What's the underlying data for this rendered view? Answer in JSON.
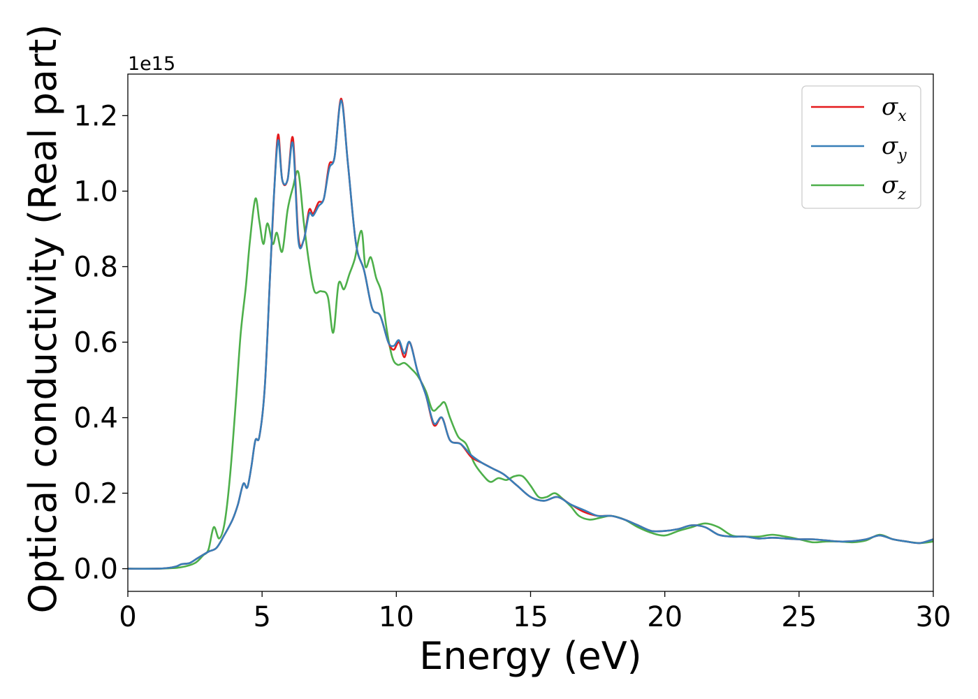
{
  "chart_data": {
    "type": "line",
    "xlabel": "Energy (eV)",
    "ylabel": "Optical conductivity (Real part)",
    "y_offset_label": "1e15",
    "xlim": [
      0,
      30
    ],
    "ylim": [
      -0.06,
      1.31
    ],
    "xticks": [
      0,
      5,
      10,
      15,
      20,
      25,
      30
    ],
    "xtick_labels": [
      "0",
      "5",
      "10",
      "15",
      "20",
      "25",
      "30"
    ],
    "yticks": [
      0.0,
      0.2,
      0.4,
      0.6,
      0.8,
      1.0,
      1.2
    ],
    "ytick_labels": [
      "0.0",
      "0.2",
      "0.4",
      "0.6",
      "0.8",
      "1.0",
      "1.2"
    ],
    "grid": false,
    "legend_position": "top-right",
    "series": [
      {
        "name": "σx",
        "symbol": "σ",
        "subscript": "x",
        "color": "#e41a1c",
        "x": [
          0,
          1,
          1.5,
          1.8,
          2.0,
          2.3,
          2.6,
          3.0,
          3.3,
          3.6,
          3.9,
          4.1,
          4.3,
          4.45,
          4.6,
          4.75,
          4.9,
          5.1,
          5.3,
          5.45,
          5.6,
          5.75,
          5.95,
          6.15,
          6.35,
          6.55,
          6.75,
          6.9,
          7.1,
          7.3,
          7.5,
          7.7,
          7.95,
          8.2,
          8.5,
          8.8,
          9.1,
          9.4,
          9.7,
          9.9,
          10.1,
          10.3,
          10.5,
          10.8,
          11.1,
          11.4,
          11.7,
          12.0,
          12.4,
          12.8,
          13.2,
          13.6,
          14.0,
          14.5,
          15.0,
          15.5,
          16.0,
          16.5,
          17.0,
          17.5,
          18.0,
          18.5,
          19.0,
          19.5,
          20.0,
          20.5,
          21.0,
          21.5,
          22.0,
          22.5,
          23.0,
          23.5,
          24.0,
          24.5,
          25.0,
          25.5,
          26.0,
          26.5,
          27.0,
          27.5,
          28.0,
          28.5,
          29.0,
          29.5,
          30.0
        ],
        "values": [
          0,
          0.0,
          0.002,
          0.006,
          0.012,
          0.015,
          0.028,
          0.045,
          0.055,
          0.09,
          0.13,
          0.17,
          0.225,
          0.215,
          0.27,
          0.34,
          0.35,
          0.48,
          0.78,
          1.0,
          1.15,
          1.03,
          1.03,
          1.14,
          0.88,
          0.87,
          0.95,
          0.94,
          0.97,
          0.98,
          1.07,
          1.09,
          1.245,
          1.07,
          0.86,
          0.79,
          0.69,
          0.67,
          0.6,
          0.58,
          0.6,
          0.56,
          0.6,
          0.52,
          0.46,
          0.38,
          0.4,
          0.34,
          0.33,
          0.295,
          0.28,
          0.265,
          0.25,
          0.22,
          0.19,
          0.18,
          0.19,
          0.17,
          0.15,
          0.14,
          0.14,
          0.13,
          0.115,
          0.1,
          0.1,
          0.105,
          0.115,
          0.11,
          0.09,
          0.085,
          0.085,
          0.08,
          0.082,
          0.08,
          0.078,
          0.078,
          0.075,
          0.072,
          0.073,
          0.078,
          0.088,
          0.078,
          0.072,
          0.068,
          0.078
        ]
      },
      {
        "name": "σy",
        "symbol": "σ",
        "subscript": "y",
        "color": "#377eb8",
        "x": [
          0,
          1,
          1.5,
          1.8,
          2.0,
          2.3,
          2.6,
          3.0,
          3.3,
          3.6,
          3.9,
          4.1,
          4.3,
          4.45,
          4.6,
          4.75,
          4.9,
          5.1,
          5.3,
          5.45,
          5.6,
          5.75,
          5.95,
          6.15,
          6.35,
          6.55,
          6.75,
          6.9,
          7.1,
          7.3,
          7.5,
          7.7,
          7.95,
          8.2,
          8.5,
          8.8,
          9.1,
          9.4,
          9.7,
          9.9,
          10.1,
          10.3,
          10.5,
          10.8,
          11.1,
          11.4,
          11.7,
          12.0,
          12.4,
          12.8,
          13.2,
          13.6,
          14.0,
          14.5,
          15.0,
          15.5,
          16.0,
          16.5,
          17.0,
          17.5,
          18.0,
          18.5,
          19.0,
          19.5,
          20.0,
          20.5,
          21.0,
          21.5,
          22.0,
          22.5,
          23.0,
          23.5,
          24.0,
          24.5,
          25.0,
          25.5,
          26.0,
          26.5,
          27.0,
          27.5,
          28.0,
          28.5,
          29.0,
          29.5,
          30.0
        ],
        "values": [
          0,
          0.0,
          0.002,
          0.006,
          0.012,
          0.015,
          0.028,
          0.045,
          0.055,
          0.09,
          0.13,
          0.17,
          0.225,
          0.215,
          0.27,
          0.34,
          0.35,
          0.48,
          0.78,
          1.0,
          1.135,
          1.03,
          1.03,
          1.125,
          0.87,
          0.87,
          0.94,
          0.935,
          0.96,
          0.98,
          1.06,
          1.09,
          1.24,
          1.07,
          0.86,
          0.79,
          0.69,
          0.67,
          0.6,
          0.59,
          0.605,
          0.57,
          0.6,
          0.52,
          0.46,
          0.385,
          0.4,
          0.34,
          0.33,
          0.3,
          0.28,
          0.265,
          0.25,
          0.22,
          0.19,
          0.18,
          0.19,
          0.17,
          0.155,
          0.14,
          0.14,
          0.13,
          0.115,
          0.1,
          0.1,
          0.105,
          0.115,
          0.11,
          0.09,
          0.085,
          0.085,
          0.08,
          0.082,
          0.08,
          0.078,
          0.078,
          0.075,
          0.072,
          0.073,
          0.078,
          0.088,
          0.078,
          0.072,
          0.068,
          0.078
        ]
      },
      {
        "name": "σz",
        "symbol": "σ",
        "subscript": "z",
        "color": "#4daf4a",
        "x": [
          0,
          1,
          1.5,
          2.0,
          2.5,
          2.8,
          3.0,
          3.2,
          3.4,
          3.6,
          3.8,
          4.0,
          4.2,
          4.4,
          4.55,
          4.75,
          4.9,
          5.05,
          5.2,
          5.4,
          5.55,
          5.75,
          5.95,
          6.15,
          6.35,
          6.55,
          6.75,
          6.95,
          7.2,
          7.45,
          7.65,
          7.85,
          8.05,
          8.25,
          8.45,
          8.7,
          8.85,
          9.05,
          9.25,
          9.45,
          9.65,
          9.85,
          10.05,
          10.3,
          10.55,
          10.8,
          11.1,
          11.35,
          11.6,
          11.8,
          12.0,
          12.3,
          12.6,
          12.9,
          13.2,
          13.5,
          13.8,
          14.1,
          14.4,
          14.7,
          15.0,
          15.3,
          15.6,
          15.9,
          16.2,
          16.5,
          16.8,
          17.2,
          17.6,
          18.0,
          18.5,
          19.0,
          19.5,
          20.0,
          20.5,
          21.0,
          21.5,
          22.0,
          22.5,
          23.0,
          23.5,
          24.0,
          24.5,
          25.0,
          25.5,
          26.0,
          26.5,
          27.0,
          27.5,
          28.0,
          28.5,
          29.0,
          29.5,
          30.0
        ],
        "values": [
          0,
          0.0,
          0.001,
          0.004,
          0.015,
          0.035,
          0.05,
          0.11,
          0.08,
          0.12,
          0.24,
          0.42,
          0.62,
          0.75,
          0.87,
          0.98,
          0.92,
          0.86,
          0.915,
          0.86,
          0.89,
          0.84,
          0.95,
          1.01,
          1.05,
          0.92,
          0.81,
          0.735,
          0.735,
          0.72,
          0.625,
          0.755,
          0.74,
          0.78,
          0.82,
          0.895,
          0.8,
          0.825,
          0.77,
          0.73,
          0.63,
          0.56,
          0.54,
          0.545,
          0.53,
          0.51,
          0.47,
          0.42,
          0.43,
          0.44,
          0.4,
          0.35,
          0.33,
          0.28,
          0.25,
          0.23,
          0.24,
          0.235,
          0.245,
          0.245,
          0.22,
          0.19,
          0.19,
          0.2,
          0.185,
          0.165,
          0.14,
          0.13,
          0.135,
          0.14,
          0.13,
          0.11,
          0.095,
          0.088,
          0.1,
          0.11,
          0.12,
          0.11,
          0.088,
          0.085,
          0.085,
          0.09,
          0.085,
          0.078,
          0.07,
          0.072,
          0.072,
          0.07,
          0.075,
          0.09,
          0.078,
          0.072,
          0.068,
          0.072
        ]
      }
    ]
  }
}
